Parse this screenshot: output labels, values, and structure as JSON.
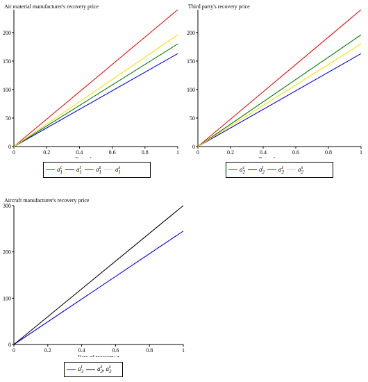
{
  "chart_data": [
    {
      "type": "line",
      "title": "Air material manufacturer's recovery price",
      "xlabel": "Rate of recovery σ",
      "ylabel": "",
      "xlim": [
        0,
        1
      ],
      "ylim": [
        0,
        240
      ],
      "xticks": [
        "0",
        "0.2",
        "0.4",
        "0.6",
        "0.8",
        "1"
      ],
      "yticks": [
        "0",
        "50",
        "100",
        "150",
        "200"
      ],
      "grid": false,
      "legend_position": "bottom",
      "series": [
        {
          "name": "a1 c",
          "color": "#ff0000",
          "x": [
            0,
            1
          ],
          "y": [
            0,
            240
          ]
        },
        {
          "name": "a1 t",
          "color": "#0000ff",
          "x": [
            0,
            1
          ],
          "y": [
            0,
            163
          ]
        },
        {
          "name": "a1 z",
          "color": "#008000",
          "x": [
            0,
            1
          ],
          "y": [
            0,
            180
          ]
        },
        {
          "name": "a1 s",
          "color": "#ffdd00",
          "x": [
            0,
            1
          ],
          "y": [
            0,
            196
          ]
        }
      ]
    },
    {
      "type": "line",
      "title": "Third party's recovery price",
      "xlabel": "Rate of recovery σ",
      "ylabel": "",
      "xlim": [
        0,
        1
      ],
      "ylim": [
        0,
        240
      ],
      "xticks": [
        "0",
        "0.2",
        "0.4",
        "0.6",
        "0.8",
        "1"
      ],
      "yticks": [
        "0",
        "50",
        "100",
        "150",
        "200"
      ],
      "grid": false,
      "legend_position": "bottom",
      "series": [
        {
          "name": "a2 c",
          "color": "#ff0000",
          "x": [
            0,
            1
          ],
          "y": [
            0,
            240
          ]
        },
        {
          "name": "a2 t",
          "color": "#0000ff",
          "x": [
            0,
            1
          ],
          "y": [
            0,
            163
          ]
        },
        {
          "name": "a2 z",
          "color": "#008000",
          "x": [
            0,
            1
          ],
          "y": [
            0,
            196
          ]
        },
        {
          "name": "a2 s",
          "color": "#ffdd00",
          "x": [
            0,
            1
          ],
          "y": [
            0,
            180
          ]
        }
      ]
    },
    {
      "type": "line",
      "title": "Aircraft manufacturer's recovery price",
      "xlabel": "Rate of recovery σ",
      "ylabel": "",
      "xlim": [
        0,
        1
      ],
      "ylim": [
        0,
        300
      ],
      "xticks": [
        "0",
        "0.2",
        "0.4",
        "0.6",
        "0.8",
        "1"
      ],
      "yticks": [
        "0",
        "100",
        "200",
        "300"
      ],
      "grid": false,
      "legend_position": "bottom",
      "series": [
        {
          "name": "a3 t",
          "color": "#0000ff",
          "x": [
            0,
            1
          ],
          "y": [
            0,
            245
          ]
        },
        {
          "name": "a3 z, a3 s",
          "color": "#000000",
          "x": [
            0,
            1
          ],
          "y": [
            0,
            300
          ]
        }
      ]
    }
  ],
  "legends": [
    {
      "items": [
        {
          "base": "a",
          "sub": "1",
          "sup": "c",
          "color": "#ff0000"
        },
        {
          "base": "a",
          "sub": "1",
          "sup": "t",
          "color": "#0000ff"
        },
        {
          "base": "a",
          "sub": "1",
          "sup": "z",
          "color": "#008000"
        },
        {
          "base": "a",
          "sub": "1",
          "sup": "s",
          "color": "#ffdd00"
        }
      ]
    },
    {
      "items": [
        {
          "base": "a",
          "sub": "2",
          "sup": "c",
          "color": "#ff0000"
        },
        {
          "base": "a",
          "sub": "2",
          "sup": "t",
          "color": "#0000ff"
        },
        {
          "base": "a",
          "sub": "2",
          "sup": "z",
          "color": "#008000"
        },
        {
          "base": "a",
          "sub": "2",
          "sup": "s",
          "color": "#ffdd00"
        }
      ]
    },
    {
      "items": [
        {
          "base": "a",
          "sub": "3",
          "sup": "t",
          "color": "#0000ff"
        },
        {
          "base": "a",
          "sub": "3",
          "sup": "z",
          "color": "#000000",
          "extra": ", a",
          "extra_sub": "3",
          "extra_sup": "s"
        }
      ]
    }
  ]
}
